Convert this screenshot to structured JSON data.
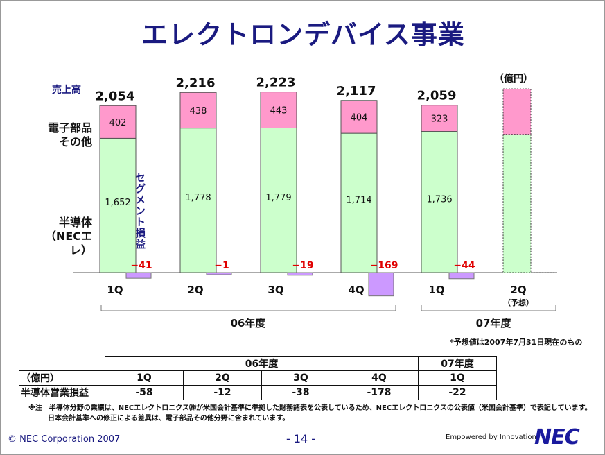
{
  "title": "エレクトロンデバイス事業",
  "unit_label": "（億円）",
  "labels": {
    "sales": "売上高",
    "other": "電子部品\nその他",
    "semi": "半導体\n（NECエレ）",
    "segment": "セグメント損益"
  },
  "forecast_note": "*予想値は2007年7月31日現在のもの",
  "chart_data": {
    "type": "bar",
    "categories": [
      "1Q",
      "2Q",
      "3Q",
      "4Q",
      "1Q",
      "2Q"
    ],
    "category_sublabels": [
      "",
      "",
      "",
      "",
      "",
      "（予想）"
    ],
    "groups": [
      {
        "label": "06年度",
        "categories": [
          0,
          1,
          2,
          3
        ]
      },
      {
        "label": "07年度",
        "categories": [
          4,
          5
        ]
      }
    ],
    "totals": [
      2054,
      2216,
      2223,
      2117,
      2059,
      null
    ],
    "series": [
      {
        "name": "半導体（NECエレ）",
        "values": [
          1652,
          1778,
          1779,
          1714,
          1736,
          null
        ],
        "color": "#ccffcc"
      },
      {
        "name": "電子部品その他",
        "values": [
          402,
          438,
          443,
          404,
          323,
          null
        ],
        "color": "#ff99cc"
      },
      {
        "name": "セグメント損益",
        "values": [
          -41,
          -1,
          -19,
          -169,
          -44,
          null
        ],
        "color": "#cc99ff"
      }
    ],
    "forecast_shape": {
      "semi": 1700,
      "other": 560
    },
    "ylim": [
      -250,
      2500
    ]
  },
  "table": {
    "unit": "（億円）",
    "group_headers": [
      "06年度",
      "07年度"
    ],
    "quarters": [
      "1Q",
      "2Q",
      "3Q",
      "4Q",
      "1Q"
    ],
    "row_label": "半導体営業損益",
    "values": [
      "-58",
      "-12",
      "-38",
      "-178",
      "-22"
    ]
  },
  "footnote": {
    "line1": "※注　半導体分野の業績は、NECエレクトロニクス㈱が米国会計基準に準拠した財務諸表を公表しているため、NECエレクトロニクスの公表値（米国会計基準）で表記しています。",
    "line2": "日本会計基準への修正による差異は、電子部品その他分野に含まれています。"
  },
  "footer": {
    "copyright": "© NEC Corporation 2007",
    "page": "- 14 -",
    "tagline": "Empowered by Innovation",
    "logo": "NEC"
  },
  "colors": {
    "title": "#1a1a80",
    "semi": "#ccffcc",
    "other": "#ff99cc",
    "segment": "#cc99ff",
    "negative_text": "#e00000"
  }
}
